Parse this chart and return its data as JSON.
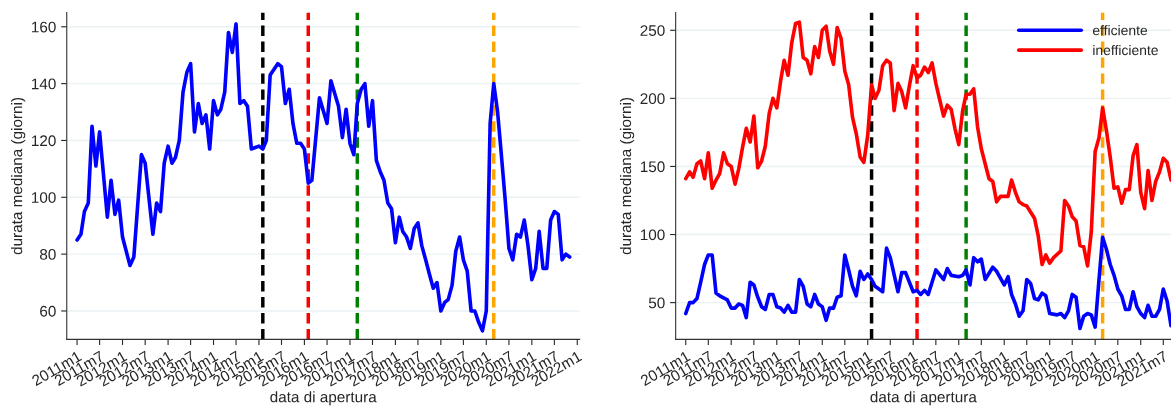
{
  "chart_data": [
    {
      "type": "line",
      "xlabel": "data di apertura",
      "ylabel": "durata mediana (giorni)",
      "grid": "y",
      "legend": false,
      "line_style": "solid",
      "marker": "none",
      "xlim": [
        "2010-10-10",
        "2022-01-20"
      ],
      "ylim": [
        50,
        165
      ],
      "yticks": [
        60,
        80,
        100,
        120,
        140,
        160
      ],
      "xticks": [
        {
          "value": "2011-01",
          "label": "2011m1"
        },
        {
          "value": "2011-07",
          "label": "2011m7"
        },
        {
          "value": "2012-01",
          "label": "2012m1"
        },
        {
          "value": "2012-07",
          "label": "2012m7"
        },
        {
          "value": "2013-01",
          "label": "2013m1"
        },
        {
          "value": "2013-07",
          "label": "2013m7"
        },
        {
          "value": "2014-01",
          "label": "2014m1"
        },
        {
          "value": "2014-07",
          "label": "2014m7"
        },
        {
          "value": "2015-01",
          "label": "2015m1"
        },
        {
          "value": "2015-07",
          "label": "2015m7"
        },
        {
          "value": "2016-01",
          "label": "2016m1"
        },
        {
          "value": "2016-07",
          "label": "2016m7"
        },
        {
          "value": "2017-01",
          "label": "2017m1"
        },
        {
          "value": "2017-07",
          "label": "2017m7"
        },
        {
          "value": "2018-01",
          "label": "2018m1"
        },
        {
          "value": "2018-07",
          "label": "2018m7"
        },
        {
          "value": "2019-01",
          "label": "2019m1"
        },
        {
          "value": "2019-07",
          "label": "2019m7"
        },
        {
          "value": "2020-01",
          "label": "2020m1"
        },
        {
          "value": "2020-07",
          "label": "2020m7"
        },
        {
          "value": "2021-01",
          "label": "2021m1"
        },
        {
          "value": "2021-07",
          "label": "2021m7"
        },
        {
          "value": "2022-01",
          "label": "2022m1"
        }
      ],
      "ref_lines": [
        {
          "axis": "x",
          "value": "2015-02",
          "color": "#000000",
          "line_style": "dashed"
        },
        {
          "axis": "x",
          "value": "2016-02",
          "color": "#ff0000",
          "line_style": "dashed"
        },
        {
          "axis": "x",
          "value": "2017-03",
          "color": "#008000",
          "line_style": "dashed"
        },
        {
          "axis": "x",
          "value": "2020-03",
          "color": "#ffa500",
          "line_style": "dashed"
        }
      ],
      "series": [
        {
          "color": "#0000ff",
          "x": [
            "2011-01",
            "2011-02",
            "2011-03",
            "2011-04",
            "2011-05",
            "2011-06",
            "2011-07",
            "2011-09",
            "2011-10",
            "2011-11",
            "2011-12",
            "2012-01",
            "2012-03",
            "2012-04",
            "2012-06",
            "2012-07",
            "2012-09",
            "2012-10",
            "2012-11",
            "2012-12",
            "2013-01",
            "2013-02",
            "2013-03",
            "2013-04",
            "2013-05",
            "2013-06",
            "2013-07",
            "2013-08",
            "2013-09",
            "2013-10",
            "2013-11",
            "2013-12",
            "2014-01",
            "2014-02",
            "2014-03",
            "2014-04",
            "2014-05",
            "2014-06",
            "2014-07",
            "2014-08",
            "2014-09",
            "2014-10",
            "2014-11",
            "2015-01",
            "2015-02",
            "2015-03",
            "2015-04",
            "2015-06",
            "2015-07",
            "2015-08",
            "2015-09",
            "2015-10",
            "2015-11",
            "2015-12",
            "2016-01",
            "2016-02",
            "2016-03",
            "2016-05",
            "2016-07",
            "2016-08",
            "2016-10",
            "2016-11",
            "2016-12",
            "2017-01",
            "2017-02",
            "2017-03",
            "2017-04",
            "2017-05",
            "2017-06",
            "2017-07",
            "2017-08",
            "2017-09",
            "2017-10",
            "2017-11",
            "2017-12",
            "2018-01",
            "2018-02",
            "2018-03",
            "2018-04",
            "2018-05",
            "2018-06",
            "2018-07",
            "2018-08",
            "2018-09",
            "2018-10",
            "2018-11",
            "2018-12",
            "2019-01",
            "2019-02",
            "2019-03",
            "2019-04",
            "2019-05",
            "2019-06",
            "2019-07",
            "2019-08",
            "2019-09",
            "2019-10",
            "2019-11",
            "2019-12",
            "2020-01",
            "2020-02",
            "2020-03",
            "2020-04",
            "2020-05",
            "2020-06",
            "2020-07",
            "2020-08",
            "2020-09",
            "2020-10",
            "2020-11",
            "2020-12",
            "2021-01",
            "2021-02",
            "2021-03",
            "2021-04",
            "2021-05",
            "2021-06",
            "2021-07",
            "2021-08",
            "2021-09",
            "2021-10",
            "2021-11"
          ],
          "values": [
            85,
            87,
            95,
            98,
            125,
            111,
            123,
            93,
            106,
            94,
            99,
            86,
            76,
            79,
            115,
            112,
            87,
            98,
            95,
            112,
            118,
            112,
            114,
            120,
            137,
            144,
            147,
            123,
            133,
            126,
            129,
            117,
            134,
            129,
            131,
            137,
            158,
            151,
            161,
            133,
            134,
            132,
            117,
            118,
            117,
            120,
            143,
            147,
            146,
            133,
            138,
            126,
            119,
            119,
            117,
            105,
            106,
            135,
            126,
            141,
            132,
            121,
            131,
            119,
            115,
            133,
            138,
            140,
            125,
            134,
            113,
            109,
            106,
            98,
            96,
            84,
            93,
            88,
            86,
            82,
            89,
            91,
            83,
            78,
            73,
            68,
            70,
            60,
            63,
            64,
            69,
            81,
            86,
            78,
            74,
            60,
            60,
            56,
            53,
            60,
            126,
            140,
            130,
            115,
            99,
            82,
            78,
            87,
            86,
            92,
            83,
            71,
            75,
            88,
            75,
            75,
            92,
            95,
            94,
            78,
            80,
            79
          ]
        }
      ]
    },
    {
      "type": "line",
      "xlabel": "data di apertura",
      "ylabel": "durata mediana (giorni)",
      "grid": "y",
      "legend": "top right",
      "line_style": "solid",
      "marker": "none",
      "xlim": [
        "2010-10-12",
        "2021-09-01"
      ],
      "ylim": [
        23,
        263
      ],
      "yticks": [
        50,
        100,
        150,
        200,
        250
      ],
      "xticks": [
        {
          "value": "2011-01",
          "label": "2011m1"
        },
        {
          "value": "2011-07",
          "label": "2011m7"
        },
        {
          "value": "2012-01",
          "label": "2012m1"
        },
        {
          "value": "2012-07",
          "label": "2012m7"
        },
        {
          "value": "2013-01",
          "label": "2013m1"
        },
        {
          "value": "2013-07",
          "label": "2013m7"
        },
        {
          "value": "2014-01",
          "label": "2014m1"
        },
        {
          "value": "2014-07",
          "label": "2014m7"
        },
        {
          "value": "2015-01",
          "label": "2015m1"
        },
        {
          "value": "2015-07",
          "label": "2015m7"
        },
        {
          "value": "2016-01",
          "label": "2016m1"
        },
        {
          "value": "2016-07",
          "label": "2016m7"
        },
        {
          "value": "2017-01",
          "label": "2017m1"
        },
        {
          "value": "2017-07",
          "label": "2017m7"
        },
        {
          "value": "2018-01",
          "label": "2018m1"
        },
        {
          "value": "2018-07",
          "label": "2018m7"
        },
        {
          "value": "2019-01",
          "label": "2019m1"
        },
        {
          "value": "2019-07",
          "label": "2019m7"
        },
        {
          "value": "2020-01",
          "label": "2020m1"
        },
        {
          "value": "2020-07",
          "label": "2020m7"
        },
        {
          "value": "2021-01",
          "label": "2021m1"
        },
        {
          "value": "2021-07",
          "label": "2021m7"
        }
      ],
      "ref_lines": [
        {
          "axis": "x",
          "value": "2015-02",
          "color": "#000000",
          "line_style": "dashed"
        },
        {
          "axis": "x",
          "value": "2016-02",
          "color": "#ff0000",
          "line_style": "dashed"
        },
        {
          "axis": "x",
          "value": "2017-03",
          "color": "#008000",
          "line_style": "dashed"
        },
        {
          "axis": "x",
          "value": "2020-03",
          "color": "#ffa500",
          "line_style": "dashed"
        }
      ],
      "series": [
        {
          "name": "efficiente",
          "color": "#0000ff",
          "x": [
            "2011-01",
            "2011-02",
            "2011-03",
            "2011-04",
            "2011-05",
            "2011-06",
            "2011-07",
            "2011-08",
            "2011-09",
            "2011-10",
            "2011-12",
            "2012-01",
            "2012-02",
            "2012-03",
            "2012-04",
            "2012-05",
            "2012-06",
            "2012-07",
            "2012-08",
            "2012-09",
            "2012-10",
            "2012-11",
            "2012-12",
            "2013-01",
            "2013-02",
            "2013-03",
            "2013-04",
            "2013-05",
            "2013-06",
            "2013-07",
            "2013-08",
            "2013-09",
            "2013-10",
            "2013-11",
            "2013-12",
            "2014-01",
            "2014-02",
            "2014-03",
            "2014-04",
            "2014-05",
            "2014-06",
            "2014-07",
            "2014-08",
            "2014-09",
            "2014-10",
            "2014-11",
            "2014-12",
            "2015-01",
            "2015-02",
            "2015-03",
            "2015-04",
            "2015-05",
            "2015-06",
            "2015-07",
            "2015-09",
            "2015-10",
            "2015-11",
            "2016-01",
            "2016-02",
            "2016-03",
            "2016-04",
            "2016-05",
            "2016-07",
            "2016-09",
            "2016-10",
            "2016-11",
            "2017-01",
            "2017-02",
            "2017-03",
            "2017-04",
            "2017-05",
            "2017-06",
            "2017-07",
            "2017-08",
            "2017-10",
            "2017-11",
            "2018-01",
            "2018-02",
            "2018-03",
            "2018-04",
            "2018-05",
            "2018-06",
            "2018-07",
            "2018-08",
            "2018-09",
            "2018-10",
            "2018-11",
            "2018-12",
            "2019-01",
            "2019-03",
            "2019-04",
            "2019-05",
            "2019-06",
            "2019-07",
            "2019-08",
            "2019-09",
            "2019-10",
            "2019-11",
            "2019-12",
            "2020-01",
            "2020-02",
            "2020-03",
            "2020-04",
            "2020-05",
            "2020-06",
            "2020-07",
            "2020-08",
            "2020-09",
            "2020-10",
            "2020-11",
            "2020-12",
            "2021-01",
            "2021-02",
            "2021-03",
            "2021-04",
            "2021-05",
            "2021-06",
            "2021-07",
            "2021-08",
            "2021-09"
          ],
          "values": [
            42,
            50,
            50,
            53,
            65,
            78,
            85,
            85,
            57,
            55,
            52,
            46,
            46,
            49,
            48,
            39,
            65,
            63,
            54,
            47,
            45,
            56,
            56,
            47,
            46,
            43,
            48,
            43,
            43,
            67,
            62,
            49,
            47,
            56,
            49,
            47,
            37,
            46,
            46,
            54,
            55,
            85,
            74,
            62,
            55,
            73,
            67,
            71,
            67,
            62,
            60,
            58,
            90,
            83,
            58,
            72,
            72,
            58,
            59,
            56,
            59,
            56,
            74,
            67,
            75,
            70,
            69,
            70,
            74,
            63,
            83,
            80,
            82,
            67,
            76,
            73,
            63,
            69,
            56,
            49,
            40,
            44,
            67,
            64,
            53,
            52,
            57,
            55,
            42,
            41,
            42,
            39,
            44,
            56,
            54,
            31,
            40,
            42,
            41,
            32,
            67,
            98,
            89,
            78,
            70,
            60,
            55,
            45,
            45,
            58,
            47,
            42,
            39,
            48,
            40,
            40,
            45,
            60,
            51,
            33
          ]
        },
        {
          "name": "inefficiente",
          "color": "#ff0000",
          "x": [
            "2011-01",
            "2011-02",
            "2011-03",
            "2011-04",
            "2011-05",
            "2011-06",
            "2011-07",
            "2011-08",
            "2011-09",
            "2011-10",
            "2011-11",
            "2011-12",
            "2012-01",
            "2012-02",
            "2012-03",
            "2012-04",
            "2012-05",
            "2012-06",
            "2012-07",
            "2012-08",
            "2012-09",
            "2012-10",
            "2012-11",
            "2012-12",
            "2013-01",
            "2013-02",
            "2013-03",
            "2013-04",
            "2013-05",
            "2013-06",
            "2013-07",
            "2013-08",
            "2013-09",
            "2013-10",
            "2013-11",
            "2013-12",
            "2014-01",
            "2014-02",
            "2014-03",
            "2014-04",
            "2014-05",
            "2014-06",
            "2014-07",
            "2014-08",
            "2014-09",
            "2014-10",
            "2014-11",
            "2014-12",
            "2015-01",
            "2015-02",
            "2015-03",
            "2015-04",
            "2015-05",
            "2015-06",
            "2015-07",
            "2015-08",
            "2015-09",
            "2015-10",
            "2015-11",
            "2015-12",
            "2016-01",
            "2016-02",
            "2016-03",
            "2016-04",
            "2016-05",
            "2016-06",
            "2016-07",
            "2016-08",
            "2016-09",
            "2016-10",
            "2016-11",
            "2016-12",
            "2017-01",
            "2017-02",
            "2017-03",
            "2017-04",
            "2017-05",
            "2017-06",
            "2017-07",
            "2017-09",
            "2017-10",
            "2017-11",
            "2017-12",
            "2018-01",
            "2018-02",
            "2018-03",
            "2018-04",
            "2018-05",
            "2018-06",
            "2018-07",
            "2018-09",
            "2018-10",
            "2018-11",
            "2018-12",
            "2019-01",
            "2019-02",
            "2019-04",
            "2019-05",
            "2019-06",
            "2019-07",
            "2019-08",
            "2019-09",
            "2019-10",
            "2019-11",
            "2019-12",
            "2020-01",
            "2020-02",
            "2020-03",
            "2020-04",
            "2020-05",
            "2020-06",
            "2020-07",
            "2020-08",
            "2020-09",
            "2020-10",
            "2020-11",
            "2020-12",
            "2021-01",
            "2021-02",
            "2021-03",
            "2021-04",
            "2021-05",
            "2021-06",
            "2021-07",
            "2021-08",
            "2021-09"
          ],
          "values": [
            141,
            146,
            142,
            152,
            154,
            141,
            160,
            134,
            140,
            145,
            160,
            152,
            150,
            137,
            148,
            164,
            178,
            168,
            187,
            149,
            154,
            165,
            189,
            200,
            193,
            213,
            228,
            217,
            241,
            255,
            256,
            230,
            228,
            218,
            238,
            230,
            250,
            253,
            235,
            225,
            252,
            244,
            220,
            210,
            186,
            174,
            157,
            153,
            173,
            210,
            200,
            206,
            224,
            228,
            226,
            191,
            211,
            205,
            193,
            209,
            224,
            215,
            217,
            223,
            219,
            226,
            211,
            199,
            187,
            195,
            192,
            178,
            166,
            191,
            203,
            203,
            207,
            179,
            163,
            141,
            139,
            124,
            128,
            128,
            128,
            140,
            131,
            124,
            122,
            121,
            112,
            99,
            78,
            85,
            79,
            83,
            88,
            125,
            121,
            113,
            110,
            92,
            91,
            77,
            102,
            161,
            171,
            193,
            176,
            157,
            134,
            135,
            123,
            133,
            133,
            158,
            166,
            131,
            119,
            147,
            125,
            139,
            146,
            156,
            153,
            140
          ]
        }
      ]
    }
  ]
}
